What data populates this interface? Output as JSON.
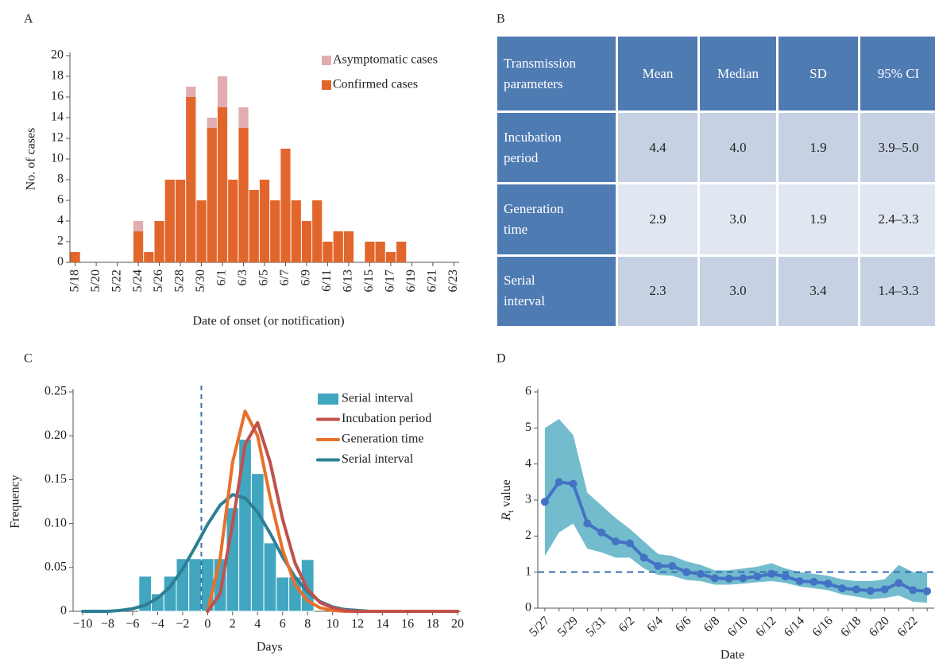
{
  "panel_labels": [
    "A",
    "B",
    "C",
    "D"
  ],
  "chart_data": [
    {
      "type": "bar",
      "stacked": true,
      "legend": "upper right",
      "x_label": "Date of onset (or notification)",
      "y_label": "No. of cases",
      "categories": [
        "5/18",
        null,
        "5/20",
        null,
        "5/22",
        null,
        "5/24",
        null,
        "5/26",
        null,
        "5/28",
        null,
        "5/30",
        null,
        "6/1",
        null,
        "6/3",
        null,
        "6/5",
        null,
        "6/7",
        null,
        "6/9",
        null,
        "6/11",
        null,
        "6/13",
        null,
        "6/15",
        null,
        "6/17",
        null,
        "6/19",
        null,
        "6/21",
        null,
        "6/23"
      ],
      "series": [
        {
          "name": "Confirmed cases",
          "color": "#e2662c",
          "values": [
            1,
            0,
            0,
            0,
            0,
            0,
            3,
            1,
            4,
            8,
            8,
            16,
            6,
            13,
            15,
            8,
            13,
            7,
            8,
            6,
            11,
            6,
            4,
            6,
            2,
            3,
            3,
            0,
            2,
            2,
            1,
            2,
            0,
            0,
            0,
            0,
            0
          ]
        },
        {
          "name": "Asymptomatic cases",
          "color": "#e2adb0",
          "values": [
            0,
            0,
            0,
            0,
            0,
            0,
            1,
            0,
            0,
            0,
            0,
            1,
            0,
            1,
            3,
            0,
            2,
            0,
            0,
            0,
            0,
            0,
            0,
            0,
            0,
            0,
            0,
            0,
            0,
            0,
            0,
            0,
            0,
            0,
            0,
            0,
            0
          ]
        }
      ],
      "ylim": [
        0,
        20
      ],
      "yticks": [
        0,
        2,
        4,
        6,
        8,
        10,
        12,
        14,
        16,
        18,
        20
      ]
    },
    {
      "type": "histogram",
      "legend": "upper right",
      "x_label": "Days",
      "y_label": "Frequency",
      "histogram": {
        "name": "Serial interval",
        "color": "#41a6bf",
        "bins": [
          -5.5,
          -4.5,
          -3.5,
          -2.5,
          -1.5,
          -0.5,
          0.5,
          1.5,
          2.5,
          3.5,
          4.5,
          5.5,
          6.5,
          7.5,
          8.5
        ],
        "counts": [
          0.04,
          0.02,
          0.04,
          0.06,
          0.06,
          0.06,
          0.06,
          0.118,
          0.196,
          0.157,
          0.078,
          0.039,
          0.039,
          0.059
        ]
      },
      "series": [
        {
          "name": "Incubation period",
          "color": "#c0504d",
          "x": [
            0,
            1,
            2,
            3,
            4,
            5,
            6,
            7,
            8,
            9,
            10,
            11,
            12,
            13,
            14,
            15,
            16,
            17,
            18,
            19,
            20
          ],
          "values": [
            0,
            0.02,
            0.1,
            0.19,
            0.215,
            0.17,
            0.105,
            0.055,
            0.025,
            0.01,
            0.004,
            0.001,
            0,
            0,
            0,
            0,
            0,
            0,
            0,
            0,
            0
          ]
        },
        {
          "name": "Generation time",
          "color": "#e8702a",
          "x": [
            0,
            1,
            2,
            3,
            4,
            5,
            6,
            7,
            8,
            9,
            10,
            11,
            12,
            13,
            14,
            15,
            16,
            17,
            18,
            19,
            20
          ],
          "values": [
            0,
            0.06,
            0.17,
            0.228,
            0.2,
            0.13,
            0.07,
            0.03,
            0.012,
            0.004,
            0.001,
            0,
            0,
            0,
            0,
            0,
            0,
            0,
            0,
            0,
            0
          ]
        },
        {
          "name": "Serial interval",
          "color": "#2e7f96",
          "x": [
            -10,
            -9,
            -8,
            -7,
            -6,
            -5,
            -4,
            -3,
            -2,
            -1,
            0,
            1,
            2,
            3,
            4,
            5,
            6,
            7,
            8,
            9,
            10,
            11,
            12,
            13,
            14,
            15,
            16
          ],
          "values": [
            0,
            0,
            0,
            0.001,
            0.003,
            0.007,
            0.015,
            0.028,
            0.048,
            0.073,
            0.099,
            0.121,
            0.133,
            0.129,
            0.113,
            0.089,
            0.062,
            0.039,
            0.022,
            0.011,
            0.005,
            0.002,
            0.001,
            0,
            0,
            0,
            0
          ]
        }
      ],
      "reference_line_x": -0.5,
      "xlim": [
        -10,
        20
      ],
      "xticks": [
        {
          "value": -10,
          "label": "−10"
        },
        {
          "value": -8,
          "label": "−8"
        },
        {
          "value": -6,
          "label": "−6"
        },
        {
          "value": -4,
          "label": "−4"
        },
        {
          "value": -2,
          "label": "−2"
        },
        0,
        2,
        4,
        6,
        8,
        10,
        12,
        14,
        16,
        18,
        20
      ],
      "ylim": [
        0,
        0.25
      ],
      "yticks": [
        0,
        0.05,
        {
          "value": 0.1,
          "label": "0.10"
        },
        0.15,
        {
          "value": 0.2,
          "label": "0.20"
        },
        0.25
      ]
    },
    {
      "type": "line",
      "x_label": "Date",
      "y_label": {
        "symbol": "R",
        "subscript": "t",
        "text": "value"
      },
      "categories": [
        "5/27",
        null,
        "5/29",
        null,
        "5/31",
        null,
        "6/2",
        null,
        "6/4",
        null,
        "6/6",
        null,
        "6/8",
        null,
        "6/10",
        null,
        "6/12",
        null,
        "6/14",
        null,
        "6/16",
        null,
        "6/18",
        null,
        "6/20",
        null,
        "6/22",
        null
      ],
      "series": [
        {
          "color": "#4472c4",
          "values": [
            2.95,
            3.5,
            3.45,
            2.35,
            2.1,
            1.85,
            1.8,
            1.4,
            1.17,
            1.17,
            1.0,
            0.95,
            0.83,
            0.82,
            0.83,
            0.88,
            0.95,
            0.88,
            0.75,
            0.73,
            0.68,
            0.55,
            0.52,
            0.48,
            0.52,
            0.7,
            0.5,
            0.47
          ]
        }
      ],
      "band": {
        "color": "#72bccd",
        "upper": [
          5.0,
          5.25,
          4.8,
          3.2,
          2.85,
          2.5,
          2.2,
          1.85,
          1.5,
          1.45,
          1.3,
          1.2,
          1.05,
          1.05,
          1.1,
          1.15,
          1.25,
          1.1,
          1.0,
          0.95,
          0.9,
          0.8,
          0.75,
          0.75,
          0.8,
          1.2,
          1.0,
          1.0
        ],
        "lower": [
          1.45,
          2.1,
          2.35,
          1.65,
          1.55,
          1.4,
          1.4,
          1.1,
          0.92,
          0.9,
          0.78,
          0.75,
          0.65,
          0.65,
          0.68,
          0.72,
          0.75,
          0.7,
          0.6,
          0.55,
          0.5,
          0.38,
          0.32,
          0.25,
          0.28,
          0.35,
          0.18,
          0.15
        ]
      },
      "reference_line_y": 1,
      "ylim": [
        0,
        6
      ],
      "yticks": [
        0,
        1,
        2,
        3,
        4,
        5,
        6
      ]
    }
  ],
  "table": {
    "header": [
      "Transmission parameters",
      "Mean",
      "Median",
      "SD",
      "95% CI"
    ],
    "rows": [
      [
        "Incubation period",
        "4.4",
        "4.0",
        "1.9",
        "3.9–5.0"
      ],
      [
        "Generation time",
        "2.9",
        "3.0",
        "1.9",
        "2.4–3.3"
      ],
      [
        "Serial interval",
        "2.3",
        "3.0",
        "3.4",
        "1.4–3.3"
      ]
    ]
  }
}
